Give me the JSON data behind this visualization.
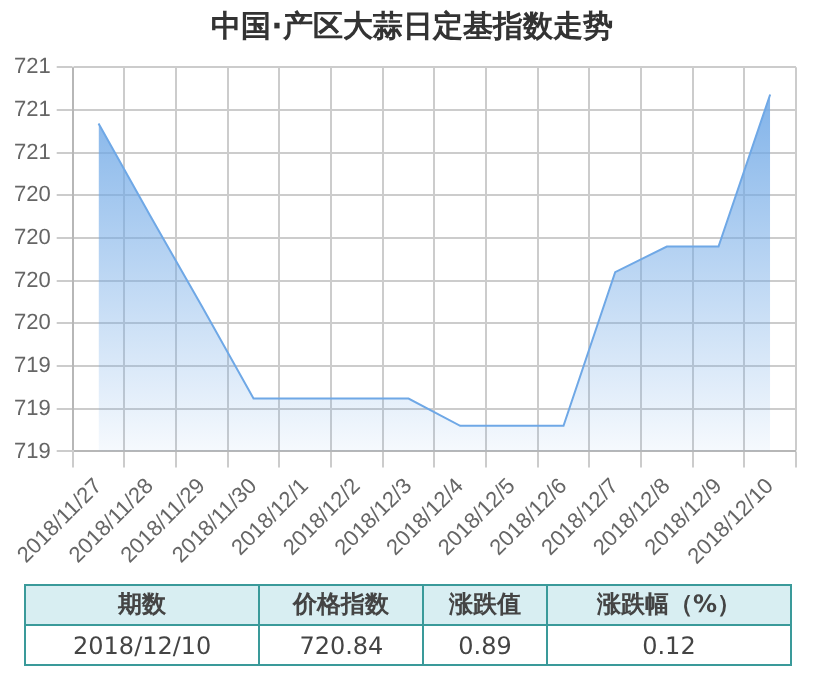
{
  "chart_data": {
    "type": "area",
    "title": "中国·产区大蒜日定基指数走势",
    "categories": [
      "2018/11/27",
      "2018/11/28",
      "2018/11/29",
      "2018/11/30",
      "2018/12/1",
      "2018/12/2",
      "2018/12/3",
      "2018/12/4",
      "2018/12/5",
      "2018/12/6",
      "2018/12/7",
      "2018/12/8",
      "2018/12/9",
      "2018/12/10"
    ],
    "series": [
      {
        "color": "#6fa8e6",
        "values": [
          720.67,
          720.13,
          719.6,
          719.06,
          719.06,
          719.06,
          719.06,
          718.9,
          718.9,
          718.9,
          719.8,
          719.95,
          719.95,
          720.84
        ]
      }
    ],
    "ylim": [
      718.75,
      721
    ],
    "yticks": [
      {
        "value": 718.75,
        "label": "719"
      },
      {
        "value": 719,
        "label": "719"
      },
      {
        "value": 719.25,
        "label": "719"
      },
      {
        "value": 719.5,
        "label": "720"
      },
      {
        "value": 719.75,
        "label": "720"
      },
      {
        "value": 720,
        "label": "720"
      },
      {
        "value": 720.25,
        "label": "720"
      },
      {
        "value": 720.5,
        "label": "721"
      },
      {
        "value": 720.75,
        "label": "721"
      },
      {
        "value": 721,
        "label": "721"
      }
    ],
    "grid": true,
    "annotations": [
      "期数",
      "价格指数",
      "涨跌值",
      "涨跌幅（%）",
      "2018/12/10",
      "720.84",
      "0.89",
      "0.12"
    ]
  }
}
